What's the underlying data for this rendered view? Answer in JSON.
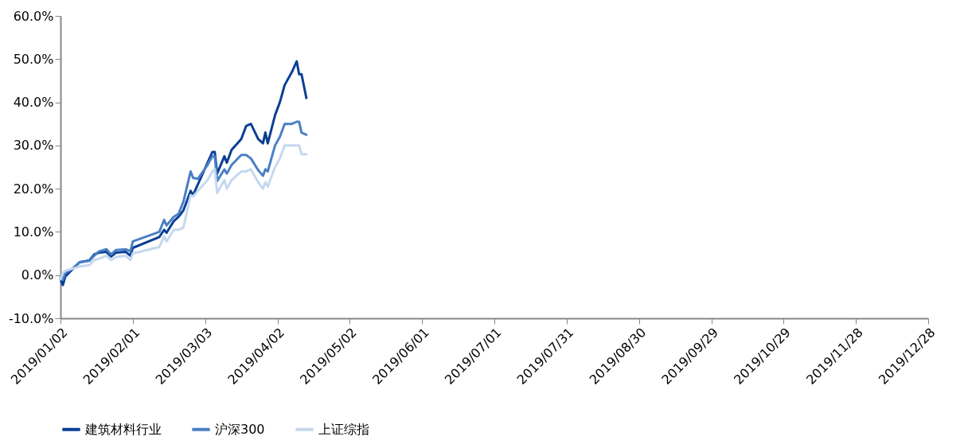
{
  "chart_data": {
    "type": "line",
    "x": [
      "2019-01-02",
      "2019-01-03",
      "2019-01-04",
      "2019-01-07",
      "2019-01-10",
      "2019-01-14",
      "2019-01-16",
      "2019-01-18",
      "2019-01-21",
      "2019-01-23",
      "2019-01-25",
      "2019-01-29",
      "2019-01-31",
      "2019-02-01",
      "2019-02-12",
      "2019-02-14",
      "2019-02-15",
      "2019-02-18",
      "2019-02-20",
      "2019-02-22",
      "2019-02-25",
      "2019-02-26",
      "2019-02-28",
      "2019-03-04",
      "2019-03-06",
      "2019-03-07",
      "2019-03-08",
      "2019-03-11",
      "2019-03-12",
      "2019-03-14",
      "2019-03-18",
      "2019-03-20",
      "2019-03-22",
      "2019-03-25",
      "2019-03-27",
      "2019-03-28",
      "2019-03-29",
      "2019-04-01",
      "2019-04-03",
      "2019-04-05",
      "2019-04-08",
      "2019-04-10",
      "2019-04-11",
      "2019-04-12",
      "2019-04-14"
    ],
    "series": [
      {
        "name": "建筑材料行业",
        "color": "#0b3f95",
        "values": [
          -1,
          -2.3,
          -0.3,
          1.4,
          3,
          3.4,
          4.8,
          5.2,
          5.4,
          4.3,
          5.2,
          5.4,
          4.5,
          6.3,
          8.8,
          10.5,
          9.8,
          12.5,
          13.5,
          15,
          19.5,
          18.5,
          21,
          26,
          28.5,
          28.5,
          23.5,
          27.5,
          26,
          29,
          31.5,
          34.5,
          35,
          31.5,
          30.5,
          33,
          30.5,
          37,
          40,
          44,
          47,
          49.5,
          46.5,
          46.5,
          41
        ]
      },
      {
        "name": "沪深300",
        "color": "#4a7fc4",
        "values": [
          -0.5,
          -1,
          0.5,
          1.5,
          3,
          3.3,
          4.5,
          5.5,
          6,
          4.8,
          5.8,
          6,
          5.5,
          7.8,
          10,
          12.8,
          11.5,
          13.5,
          14.2,
          17,
          24,
          22.5,
          22.3,
          25.5,
          27.5,
          27.5,
          21.8,
          24.5,
          23.5,
          25.5,
          27.8,
          27.8,
          27,
          24.3,
          23,
          24.5,
          24,
          30,
          32,
          35,
          35,
          35.5,
          35.5,
          33,
          32.5
        ]
      },
      {
        "name": "上证综指",
        "color": "#c5d8ef",
        "values": [
          -1,
          0.5,
          1,
          1.5,
          2,
          2.3,
          3.5,
          3.8,
          4.5,
          3.5,
          4.2,
          4.5,
          3.5,
          5,
          6.5,
          9,
          7.8,
          10.5,
          10.5,
          11,
          18.5,
          18.2,
          19.5,
          22,
          24,
          24.5,
          19,
          22,
          20,
          22,
          24,
          24,
          24.5,
          21.5,
          20,
          21.5,
          20.5,
          25,
          27,
          30,
          30,
          30,
          30,
          28,
          28
        ]
      }
    ],
    "xlim": [
      "2019-01-02",
      "2019-12-28"
    ],
    "xticks": [
      {
        "value": "2019-01-02",
        "label": "2019/01/02"
      },
      {
        "value": "2019-02-01",
        "label": "2019/02/01"
      },
      {
        "value": "2019-03-03",
        "label": "2019/03/03"
      },
      {
        "value": "2019-04-02",
        "label": "2019/04/02"
      },
      {
        "value": "2019-05-02",
        "label": "2019/05/02"
      },
      {
        "value": "2019-06-01",
        "label": "2019/06/01"
      },
      {
        "value": "2019-07-01",
        "label": "2019/07/01"
      },
      {
        "value": "2019-07-31",
        "label": "2019/07/31"
      },
      {
        "value": "2019-08-30",
        "label": "2019/08/30"
      },
      {
        "value": "2019-09-29",
        "label": "2019/09/29"
      },
      {
        "value": "2019-10-29",
        "label": "2019/10/29"
      },
      {
        "value": "2019-11-28",
        "label": "2019/11/28"
      },
      {
        "value": "2019-12-28",
        "label": "2019/12/28"
      }
    ],
    "ylim": [
      -10,
      60
    ],
    "yticks": [
      {
        "value": -10,
        "label": "-10.0%"
      },
      {
        "value": 0,
        "label": "0.0%"
      },
      {
        "value": 10,
        "label": "10.0%"
      },
      {
        "value": 20,
        "label": "20.0%"
      },
      {
        "value": 30,
        "label": "30.0%"
      },
      {
        "value": 40,
        "label": "40.0%"
      },
      {
        "value": 50,
        "label": "50.0%"
      },
      {
        "value": 60,
        "label": "60.0%"
      }
    ],
    "grid": false,
    "legend": "bottom",
    "marker": "none",
    "line_style": "solid"
  }
}
